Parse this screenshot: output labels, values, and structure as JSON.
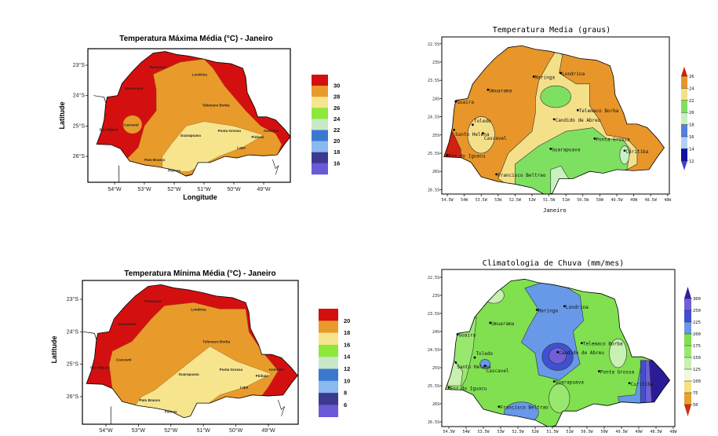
{
  "maps": [
    {
      "title": "Temperatura Máxima Média (°C) - Janeiro",
      "xlabel": "Longitude",
      "ylabel": "Latitude",
      "xticks": [
        "54°W",
        "53°W",
        "52°W",
        "51°W",
        "50°W",
        "49°W"
      ],
      "yticks": [
        "23°S",
        "24°S",
        "25°S",
        "26°S"
      ],
      "legend_labels": [
        "30",
        "28",
        "26",
        "24",
        "22",
        "20",
        "18",
        "16"
      ],
      "legend_colors": [
        "#d40f0f",
        "#e89b2a",
        "#f7e58e",
        "#8ee83a",
        "#c8e8c8",
        "#3a78d0",
        "#8ab8f0",
        "#3c3a90",
        "#6a5ad8"
      ],
      "cities": [
        {
          "name": "Paranavaí",
          "lon": -52.55,
          "lat": -23.05
        },
        {
          "name": "Londrina",
          "lon": -51.15,
          "lat": -23.3
        },
        {
          "name": "Umuarama",
          "lon": -53.35,
          "lat": -23.75
        },
        {
          "name": "Telemaco Borba",
          "lon": -50.6,
          "lat": -24.3
        },
        {
          "name": "Cascavel",
          "lon": -53.45,
          "lat": -24.95
        },
        {
          "name": "São Miguel",
          "lon": -54.2,
          "lat": -25.1
        },
        {
          "name": "Guarapuava",
          "lon": -51.45,
          "lat": -25.3
        },
        {
          "name": "Ponta Grossa",
          "lon": -50.15,
          "lat": -25.15
        },
        {
          "name": "Antonina",
          "lon": -48.75,
          "lat": -25.15
        },
        {
          "name": "Pinhais",
          "lon": -49.2,
          "lat": -25.35
        },
        {
          "name": "Lapa",
          "lon": -49.75,
          "lat": -25.7
        },
        {
          "name": "Pato Branco",
          "lon": -52.65,
          "lat": -26.1
        },
        {
          "name": "Palmas",
          "lon": -52.0,
          "lat": -26.45
        }
      ]
    },
    {
      "title": "Temperatura Media (graus)",
      "xlabel": "Janeiro",
      "xticks": [
        "54.5W",
        "54W",
        "53.5W",
        "53W",
        "52.5W",
        "52W",
        "51.5W",
        "51W",
        "50.5W",
        "50W",
        "49.5W",
        "49W",
        "48.5W",
        "48W"
      ],
      "yticks": [
        "22.5S",
        "23S",
        "23.5S",
        "24S",
        "24.5S",
        "25S",
        "25.5S",
        "26S",
        "26.5S"
      ],
      "legend_labels": [
        "26",
        "24",
        "22",
        "20",
        "18",
        "16",
        "14",
        "12"
      ],
      "legend_colors": [
        "#d02010",
        "#e8962a",
        "#f5e08a",
        "#7ee060",
        "#c8f0c0",
        "#5080e0",
        "#b0d0f8",
        "#1010a0",
        "#4040d0"
      ],
      "cities": [
        {
          "name": "Maringa",
          "lon": -51.95,
          "lat": -23.4
        },
        {
          "name": "Londrina",
          "lon": -51.15,
          "lat": -23.3
        },
        {
          "name": "Umuarama",
          "lon": -53.3,
          "lat": -23.76
        },
        {
          "name": "Guaira",
          "lon": -54.25,
          "lat": -24.08
        },
        {
          "name": "Telemaco Borba",
          "lon": -50.65,
          "lat": -24.32
        },
        {
          "name": "Candido de Abreu",
          "lon": -51.35,
          "lat": -24.57
        },
        {
          "name": "Santo Helena",
          "lon": -54.3,
          "lat": -24.86
        },
        {
          "name": "Toledo",
          "lon": -53.75,
          "lat": -24.72
        },
        {
          "name": "Cascavel",
          "lon": -53.45,
          "lat": -24.95
        },
        {
          "name": "Ponta Grossa",
          "lon": -50.15,
          "lat": -25.1
        },
        {
          "name": "Guarapuava",
          "lon": -51.45,
          "lat": -25.38
        },
        {
          "name": "Curitiba",
          "lon": -49.27,
          "lat": -25.43
        },
        {
          "name": "Foz do Iguacu",
          "lon": -54.5,
          "lat": -25.55
        },
        {
          "name": "Francisco Beltrao",
          "lon": -53.05,
          "lat": -26.08
        }
      ]
    },
    {
      "title": "Temperatura Mínima Média (°C) - Janeiro",
      "xlabel": "",
      "ylabel": "Latitude",
      "xticks": [
        "54°W",
        "53°W",
        "52°W",
        "51°W",
        "50°W",
        "49°W"
      ],
      "yticks": [
        "23°S",
        "24°S",
        "25°S",
        "26°S"
      ],
      "legend_labels": [
        "20",
        "18",
        "16",
        "14",
        "12",
        "10",
        "8",
        "6"
      ],
      "legend_colors": [
        "#d40f0f",
        "#e89b2a",
        "#f7e58e",
        "#8ee83a",
        "#c8e8c8",
        "#3a78d0",
        "#8ab8f0",
        "#3c3a90",
        "#6a5ad8"
      ],
      "cities": [
        {
          "name": "Paranavaí",
          "lon": -52.55,
          "lat": -23.05
        },
        {
          "name": "Londrina",
          "lon": -51.15,
          "lat": -23.3
        },
        {
          "name": "Umuarama",
          "lon": -53.35,
          "lat": -23.75
        },
        {
          "name": "Telemaco Borba",
          "lon": -50.6,
          "lat": -24.3
        },
        {
          "name": "Cascavel",
          "lon": -53.45,
          "lat": -24.85
        },
        {
          "name": "São Miguel",
          "lon": -54.2,
          "lat": -25.1
        },
        {
          "name": "Guarapuava",
          "lon": -51.45,
          "lat": -25.3
        },
        {
          "name": "Ponta Grossa",
          "lon": -50.15,
          "lat": -25.15
        },
        {
          "name": "Antonina",
          "lon": -48.75,
          "lat": -25.15
        },
        {
          "name": "Pinhais",
          "lon": -49.2,
          "lat": -25.35
        },
        {
          "name": "Lapa",
          "lon": -49.75,
          "lat": -25.7
        },
        {
          "name": "Pato Branco",
          "lon": -52.65,
          "lat": -26.1
        },
        {
          "name": "Palmas",
          "lon": -52.0,
          "lat": -26.45
        }
      ]
    },
    {
      "title": "Climatologia de Chuva (mm/mes)",
      "xlabel": "",
      "xticks": [
        "54.5W",
        "54W",
        "53.5W",
        "53W",
        "52.5W",
        "52W",
        "51.5W",
        "51W",
        "50.5W",
        "50W",
        "49.5W",
        "49W",
        "48.5W",
        "48W"
      ],
      "yticks": [
        "22.5S",
        "23S",
        "23.5S",
        "24S",
        "24.5S",
        "25S",
        "25.5S",
        "26S",
        "26.5S"
      ],
      "legend_labels": [
        "300",
        "250",
        "225",
        "200",
        "175",
        "150",
        "125",
        "100",
        "75",
        "50"
      ],
      "legend_colors": [
        "#3020a0",
        "#7060d8",
        "#4050d0",
        "#6898e8",
        "#80e050",
        "#98e870",
        "#c8f0b0",
        "#f0f8e0",
        "#f8e080",
        "#e8a030",
        "#d03010"
      ],
      "cities": [
        {
          "name": "Maringa",
          "lon": -51.95,
          "lat": -23.4
        },
        {
          "name": "Londrina",
          "lon": -51.15,
          "lat": -23.3
        },
        {
          "name": "Umuarama",
          "lon": -53.3,
          "lat": -23.76
        },
        {
          "name": "Guaira",
          "lon": -54.25,
          "lat": -24.08
        },
        {
          "name": "Telemaco Borba",
          "lon": -50.65,
          "lat": -24.32
        },
        {
          "name": "Candido de Abreu",
          "lon": -51.35,
          "lat": -24.57
        },
        {
          "name": "Santo Helena",
          "lon": -54.3,
          "lat": -24.86
        },
        {
          "name": "Toledo",
          "lon": -53.75,
          "lat": -24.72
        },
        {
          "name": "Cascavel",
          "lon": -53.45,
          "lat": -24.95
        },
        {
          "name": "Ponta Grossa",
          "lon": -50.15,
          "lat": -25.1
        },
        {
          "name": "Guarapuava",
          "lon": -51.45,
          "lat": -25.38
        },
        {
          "name": "Curitiba",
          "lon": -49.27,
          "lat": -25.43
        },
        {
          "name": "Foz do Iguacu",
          "lon": -54.5,
          "lat": -25.55
        },
        {
          "name": "Francisco Beltrao",
          "lon": -53.05,
          "lat": -26.08
        }
      ]
    }
  ]
}
